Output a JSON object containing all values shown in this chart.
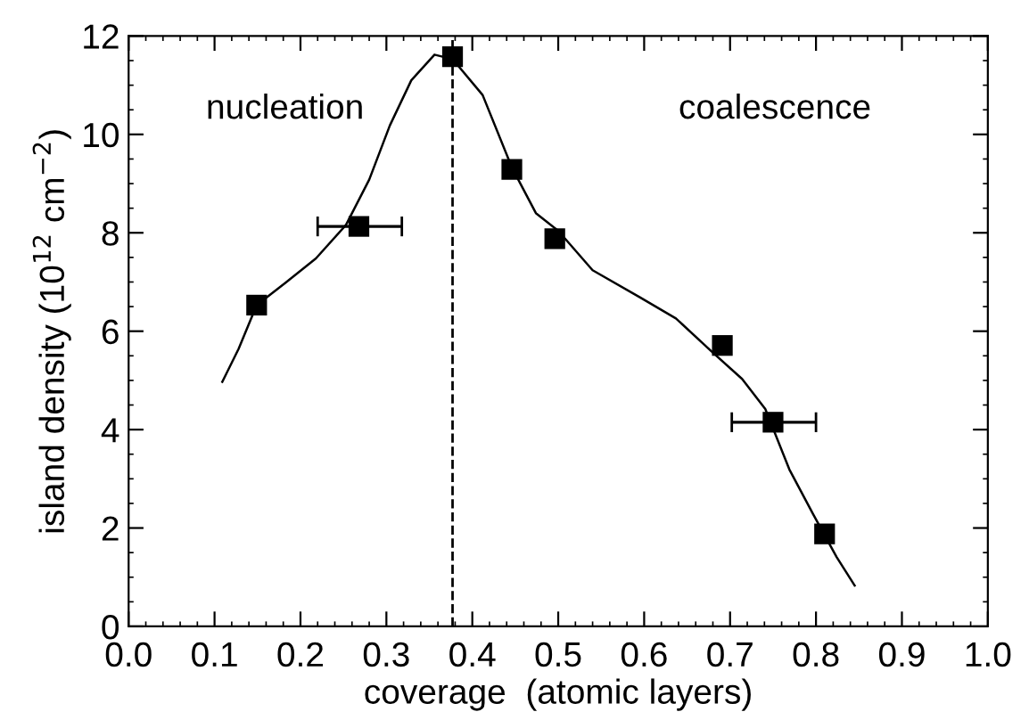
{
  "chart_data": {
    "type": "scatter",
    "xlabel": "coverage  (atomic layers)",
    "ylabel": "island density (10$^{12}$ cm$^{−2}$)",
    "annotations": [
      "nucleation",
      "coalescence"
    ],
    "xlim": [
      0,
      1
    ],
    "ylim": [
      0,
      12
    ],
    "xticks": [
      {
        "value": 0,
        "label": "0.0"
      },
      {
        "value": 0.1,
        "label": "0.1"
      },
      {
        "value": 0.2,
        "label": "0.2"
      },
      {
        "value": 0.3,
        "label": "0.3"
      },
      {
        "value": 0.4,
        "label": "0.4"
      },
      {
        "value": 0.5,
        "label": "0.5"
      },
      {
        "value": 0.6,
        "label": "0.6"
      },
      {
        "value": 0.7,
        "label": "0.7"
      },
      {
        "value": 0.8,
        "label": "0.8"
      },
      {
        "value": 0.9,
        "label": "0.9"
      },
      {
        "value": 1,
        "label": "1.0"
      }
    ],
    "yticks": [
      0,
      2,
      4,
      6,
      8,
      10,
      12
    ],
    "grid": false,
    "legend": false,
    "ref_lines": [
      {
        "axis": "x",
        "value": 0.377,
        "line_style": "dashed",
        "color": "#000000"
      }
    ],
    "series": [
      {
        "color": "#000000",
        "marker": "square",
        "x": [
          0.149,
          0.268,
          0.377,
          0.446,
          0.496,
          0.691,
          0.75,
          0.81
        ],
        "values": [
          6.53,
          8.13,
          11.58,
          9.29,
          7.88,
          5.71,
          4.15,
          1.88
        ],
        "xerrors": [
          null,
          [
            0.22,
            0.318
          ],
          null,
          null,
          null,
          null,
          [
            0.702,
            0.8
          ],
          null
        ]
      },
      {
        "type": "line",
        "color": "#000000",
        "marker": "none",
        "line_style": "solid",
        "x": [
          0.109,
          0.128,
          0.149,
          0.183,
          0.218,
          0.253,
          0.28,
          0.304,
          0.329,
          0.356,
          0.377,
          0.412,
          0.446,
          0.474,
          0.5,
          0.54,
          0.595,
          0.637,
          0.679,
          0.714,
          0.741,
          0.769,
          0.797,
          0.824,
          0.845
        ],
        "values": [
          4.97,
          5.64,
          6.53,
          6.99,
          7.48,
          8.16,
          9.08,
          10.18,
          11.1,
          11.62,
          11.53,
          10.8,
          9.33,
          8.4,
          8.04,
          7.24,
          6.69,
          6.26,
          5.58,
          5.03,
          4.42,
          3.19,
          2.27,
          1.41,
          0.83
        ]
      }
    ]
  }
}
